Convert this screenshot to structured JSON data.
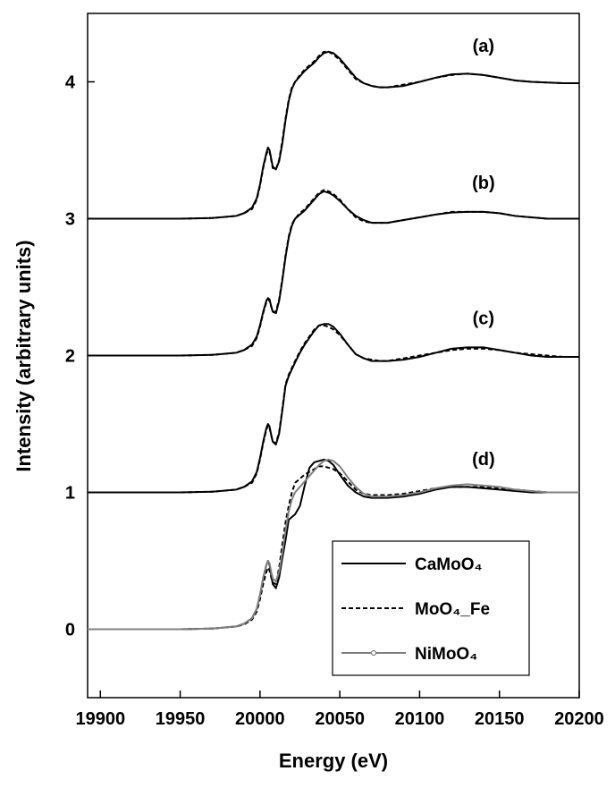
{
  "chart_data": {
    "type": "line",
    "x_label": "Energy (eV)",
    "y_label": "Intensity (arbitrary units)",
    "xlim": [
      19892,
      20200
    ],
    "ylim": [
      -0.5,
      4.5
    ],
    "xticks": [
      19900,
      19950,
      20000,
      20050,
      20100,
      20150,
      20200
    ],
    "yticks": [
      0,
      1,
      2,
      3,
      4
    ],
    "legend": "lower right",
    "x": [
      19892,
      19920,
      19950,
      19970,
      19985,
      19990,
      19995,
      19998,
      20000,
      20002,
      20004,
      20005,
      20006,
      20007,
      20008,
      20010,
      20012,
      20014,
      20016,
      20018,
      20020,
      20022,
      20025,
      20028,
      20031,
      20034,
      20037,
      20040,
      20043,
      20046,
      20050,
      20055,
      20060,
      20065,
      20070,
      20075,
      20080,
      20090,
      20100,
      20110,
      20120,
      20130,
      20140,
      20150,
      20160,
      20170,
      20180,
      20190,
      20200
    ],
    "series": [
      {
        "name": "CaMoO₄",
        "group": "(d)",
        "color": "#000000",
        "dash": false,
        "values": [
          0,
          0,
          0,
          0.005,
          0.02,
          0.04,
          0.08,
          0.15,
          0.25,
          0.37,
          0.47,
          0.5,
          0.47,
          0.4,
          0.33,
          0.3,
          0.38,
          0.52,
          0.65,
          0.8,
          0.82,
          0.84,
          0.9,
          1.05,
          1.18,
          1.22,
          1.23,
          1.24,
          1.23,
          1.2,
          1.13,
          1.05,
          1.0,
          0.97,
          0.96,
          0.96,
          0.96,
          0.97,
          0.99,
          1.02,
          1.04,
          1.04,
          1.03,
          1.02,
          1.01,
          1.0,
          1.0,
          1.0,
          1.0
        ]
      },
      {
        "name": "MoO₄_Fe",
        "group": "(d)",
        "color": "#000000",
        "dash": true,
        "values": [
          0,
          0,
          0,
          0.005,
          0.02,
          0.035,
          0.07,
          0.13,
          0.22,
          0.33,
          0.42,
          0.45,
          0.43,
          0.38,
          0.34,
          0.33,
          0.45,
          0.62,
          0.78,
          0.9,
          1.0,
          1.07,
          1.1,
          1.13,
          1.15,
          1.17,
          1.19,
          1.19,
          1.18,
          1.17,
          1.14,
          1.08,
          1.02,
          0.99,
          0.98,
          0.98,
          0.98,
          0.99,
          1.01,
          1.03,
          1.04,
          1.04,
          1.04,
          1.03,
          1.02,
          1.01,
          1.0,
          1.0,
          1.0
        ]
      },
      {
        "name": "NiMoO₄",
        "group": "(d)",
        "color": "#808080",
        "dash": false,
        "marker": "circle",
        "values": [
          0,
          0,
          0,
          0.005,
          0.02,
          0.04,
          0.08,
          0.15,
          0.25,
          0.38,
          0.47,
          0.5,
          0.48,
          0.42,
          0.37,
          0.35,
          0.42,
          0.56,
          0.72,
          0.86,
          0.95,
          1.0,
          1.04,
          1.08,
          1.12,
          1.16,
          1.2,
          1.23,
          1.24,
          1.23,
          1.19,
          1.11,
          1.04,
          0.99,
          0.97,
          0.97,
          0.97,
          0.98,
          1.0,
          1.03,
          1.05,
          1.06,
          1.05,
          1.04,
          1.02,
          1.01,
          1.0,
          1.0,
          1.0
        ]
      },
      {
        "name": "CaMoO₄",
        "group": "(a)",
        "color": "#000000",
        "dash": false,
        "values": [
          3,
          3,
          3,
          3.005,
          3.02,
          3.04,
          3.08,
          3.15,
          3.25,
          3.38,
          3.48,
          3.52,
          3.5,
          3.44,
          3.38,
          3.36,
          3.42,
          3.55,
          3.72,
          3.86,
          3.95,
          4.0,
          4.04,
          4.08,
          4.11,
          4.14,
          4.18,
          4.21,
          4.22,
          4.21,
          4.17,
          4.1,
          4.03,
          3.99,
          3.97,
          3.96,
          3.96,
          3.97,
          4.0,
          4.03,
          4.055,
          4.06,
          4.05,
          4.03,
          4.01,
          4.0,
          3.995,
          3.99,
          3.99
        ]
      },
      {
        "name": "MoO₄_Fe",
        "group": "(a)",
        "color": "#000000",
        "dash": true,
        "values": [
          3,
          3,
          3,
          3.005,
          3.02,
          3.04,
          3.07,
          3.14,
          3.24,
          3.37,
          3.47,
          3.5,
          3.49,
          3.43,
          3.37,
          3.36,
          3.43,
          3.57,
          3.73,
          3.87,
          3.96,
          4.0,
          4.05,
          4.09,
          4.12,
          4.15,
          4.19,
          4.22,
          4.22,
          4.2,
          4.16,
          4.09,
          4.02,
          3.99,
          3.97,
          3.96,
          3.96,
          3.98,
          4.0,
          4.03,
          4.05,
          4.06,
          4.05,
          4.03,
          4.01,
          4.0,
          3.995,
          3.99,
          3.99
        ]
      },
      {
        "name": "CaMoO₄",
        "group": "(b)",
        "color": "#000000",
        "dash": false,
        "values": [
          2,
          2,
          2,
          2.005,
          2.02,
          2.04,
          2.08,
          2.14,
          2.22,
          2.32,
          2.4,
          2.42,
          2.41,
          2.36,
          2.32,
          2.31,
          2.4,
          2.55,
          2.72,
          2.86,
          2.95,
          3.0,
          3.03,
          3.06,
          3.1,
          3.14,
          3.18,
          3.2,
          3.19,
          3.17,
          3.13,
          3.07,
          3.02,
          2.99,
          2.97,
          2.97,
          2.97,
          2.99,
          3.01,
          3.03,
          3.045,
          3.05,
          3.05,
          3.04,
          3.02,
          3.01,
          3.0,
          3.0,
          3.0
        ]
      },
      {
        "name": "MoO₄_Fe",
        "group": "(b)",
        "color": "#000000",
        "dash": true,
        "values": [
          2,
          2,
          2,
          2.005,
          2.02,
          2.04,
          2.07,
          2.13,
          2.21,
          2.31,
          2.39,
          2.41,
          2.4,
          2.36,
          2.32,
          2.32,
          2.41,
          2.56,
          2.73,
          2.87,
          2.96,
          3.0,
          3.04,
          3.07,
          3.11,
          3.15,
          3.19,
          3.21,
          3.2,
          3.18,
          3.14,
          3.07,
          3.01,
          2.98,
          2.97,
          2.97,
          2.97,
          2.99,
          3.01,
          3.03,
          3.05,
          3.05,
          3.05,
          3.04,
          3.02,
          3.01,
          3.0,
          3.0,
          3.0
        ]
      },
      {
        "name": "CaMoO₄",
        "group": "(c)",
        "color": "#000000",
        "dash": false,
        "values": [
          1,
          1,
          1,
          1.005,
          1.02,
          1.04,
          1.08,
          1.15,
          1.25,
          1.37,
          1.47,
          1.5,
          1.48,
          1.42,
          1.37,
          1.35,
          1.43,
          1.6,
          1.78,
          1.85,
          1.9,
          1.95,
          2.02,
          2.08,
          2.13,
          2.18,
          2.22,
          2.23,
          2.23,
          2.21,
          2.16,
          2.08,
          2.01,
          1.98,
          1.96,
          1.96,
          1.96,
          1.97,
          1.99,
          2.02,
          2.05,
          2.06,
          2.06,
          2.04,
          2.02,
          2.0,
          1.99,
          1.99,
          1.99
        ]
      },
      {
        "name": "MoO₄_Fe",
        "group": "(c)",
        "color": "#000000",
        "dash": true,
        "values": [
          1,
          1,
          1,
          1.005,
          1.02,
          1.04,
          1.07,
          1.14,
          1.24,
          1.36,
          1.46,
          1.49,
          1.47,
          1.42,
          1.37,
          1.36,
          1.44,
          1.61,
          1.79,
          1.86,
          1.91,
          1.96,
          2.03,
          2.09,
          2.14,
          2.19,
          2.22,
          2.22,
          2.21,
          2.19,
          2.15,
          2.08,
          2.01,
          1.98,
          1.97,
          1.96,
          1.96,
          1.98,
          2.0,
          2.02,
          2.04,
          2.05,
          2.05,
          2.04,
          2.02,
          2.01,
          2.0,
          1.99,
          1.99
        ]
      }
    ]
  }
}
